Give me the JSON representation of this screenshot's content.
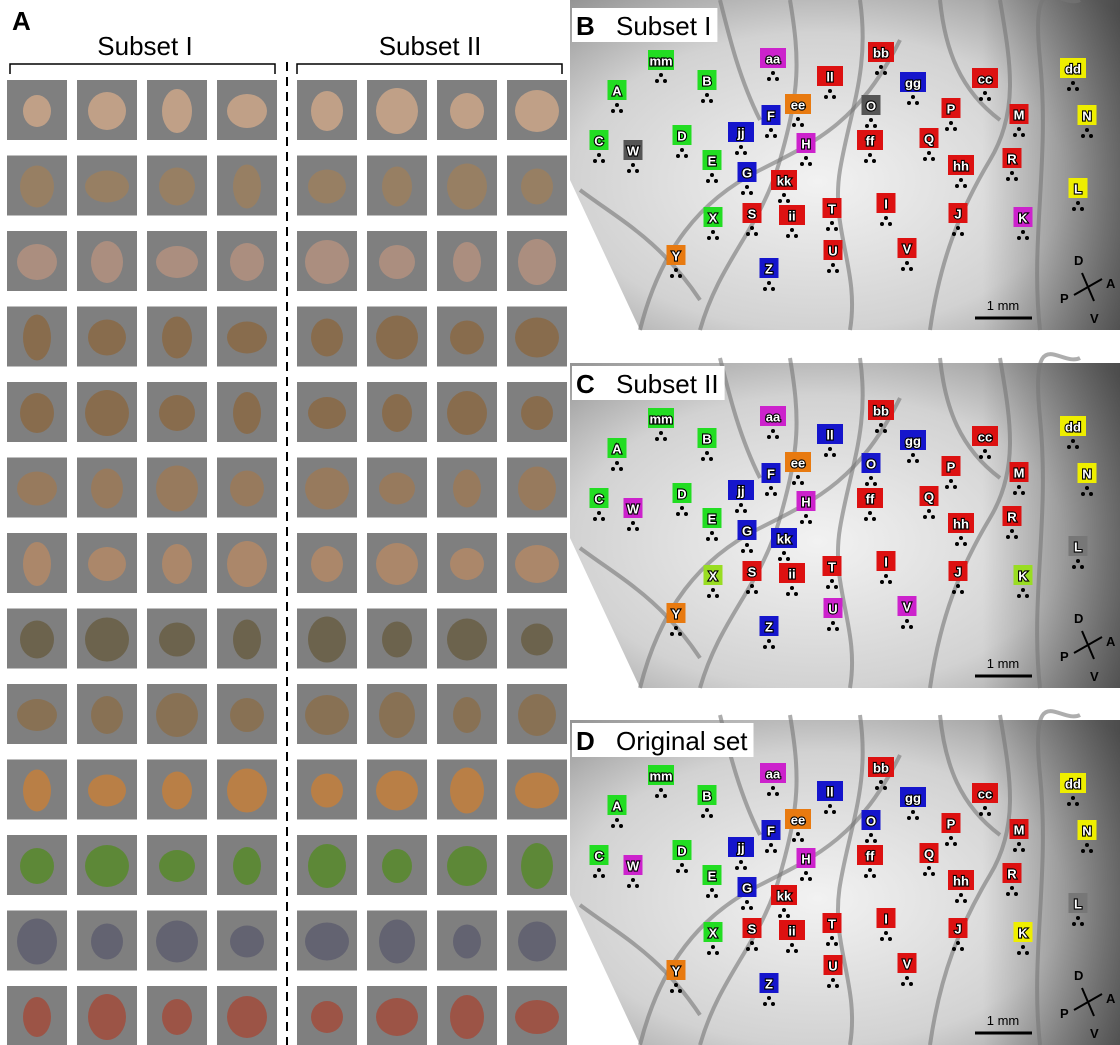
{
  "panel_a": {
    "label": "A",
    "subsets": [
      "Subset I",
      "Subset II"
    ]
  },
  "scale_bar": "1 mm",
  "compass": {
    "dorsal": "D",
    "anterior": "A",
    "posterior": "P",
    "ventral": "V"
  },
  "panels": [
    {
      "label": "B",
      "title": "Subset I",
      "sites": [
        {
          "label": "A",
          "color": "#22dd22"
        },
        {
          "label": "B",
          "color": "#22dd22"
        },
        {
          "label": "C",
          "color": "#22dd22"
        },
        {
          "label": "D",
          "color": "#22dd22"
        },
        {
          "label": "E",
          "color": "#22dd22"
        },
        {
          "label": "F",
          "color": "#1515cc"
        },
        {
          "label": "G",
          "color": "#1515cc"
        },
        {
          "label": "H",
          "color": "#cc22cc"
        },
        {
          "label": "I",
          "color": "#dd1111"
        },
        {
          "label": "J",
          "color": "#dd1111"
        },
        {
          "label": "K",
          "color": "#cc22cc"
        },
        {
          "label": "L",
          "color": "#eeee00"
        },
        {
          "label": "M",
          "color": "#dd1111"
        },
        {
          "label": "N",
          "color": "#eeee00"
        },
        {
          "label": "O",
          "color": "#555555"
        },
        {
          "label": "P",
          "color": "#dd1111"
        },
        {
          "label": "Q",
          "color": "#dd1111"
        },
        {
          "label": "R",
          "color": "#dd1111"
        },
        {
          "label": "S",
          "color": "#dd1111"
        },
        {
          "label": "T",
          "color": "#dd1111"
        },
        {
          "label": "U",
          "color": "#dd1111"
        },
        {
          "label": "V",
          "color": "#dd1111"
        },
        {
          "label": "W",
          "color": "#555555"
        },
        {
          "label": "X",
          "color": "#22dd22"
        },
        {
          "label": "Y",
          "color": "#e87a10"
        },
        {
          "label": "Z",
          "color": "#1515cc"
        },
        {
          "label": "aa",
          "color": "#cc22cc"
        },
        {
          "label": "bb",
          "color": "#dd1111"
        },
        {
          "label": "cc",
          "color": "#dd1111"
        },
        {
          "label": "dd",
          "color": "#eeee00"
        },
        {
          "label": "ee",
          "color": "#e87a10"
        },
        {
          "label": "ff",
          "color": "#dd1111"
        },
        {
          "label": "gg",
          "color": "#1515cc"
        },
        {
          "label": "hh",
          "color": "#dd1111"
        },
        {
          "label": "ii",
          "color": "#dd1111"
        },
        {
          "label": "jj",
          "color": "#1515cc"
        },
        {
          "label": "kk",
          "color": "#dd1111"
        },
        {
          "label": "ll",
          "color": "#dd1111"
        },
        {
          "label": "mm",
          "color": "#22dd22"
        }
      ]
    },
    {
      "label": "C",
      "title": "Subset II",
      "sites": [
        {
          "label": "A",
          "color": "#22dd22"
        },
        {
          "label": "B",
          "color": "#22dd22"
        },
        {
          "label": "C",
          "color": "#22dd22"
        },
        {
          "label": "D",
          "color": "#22dd22"
        },
        {
          "label": "E",
          "color": "#22dd22"
        },
        {
          "label": "F",
          "color": "#1515cc"
        },
        {
          "label": "G",
          "color": "#1515cc"
        },
        {
          "label": "H",
          "color": "#cc22cc"
        },
        {
          "label": "I",
          "color": "#dd1111"
        },
        {
          "label": "J",
          "color": "#dd1111"
        },
        {
          "label": "K",
          "color": "#99dd22"
        },
        {
          "label": "L",
          "color": "#777777"
        },
        {
          "label": "M",
          "color": "#dd1111"
        },
        {
          "label": "N",
          "color": "#eeee00"
        },
        {
          "label": "O",
          "color": "#1515cc"
        },
        {
          "label": "P",
          "color": "#dd1111"
        },
        {
          "label": "Q",
          "color": "#dd1111"
        },
        {
          "label": "R",
          "color": "#dd1111"
        },
        {
          "label": "S",
          "color": "#dd1111"
        },
        {
          "label": "T",
          "color": "#dd1111"
        },
        {
          "label": "U",
          "color": "#cc22cc"
        },
        {
          "label": "V",
          "color": "#cc22cc"
        },
        {
          "label": "W",
          "color": "#cc22cc"
        },
        {
          "label": "X",
          "color": "#99dd22"
        },
        {
          "label": "Y",
          "color": "#e87a10"
        },
        {
          "label": "Z",
          "color": "#1515cc"
        },
        {
          "label": "aa",
          "color": "#cc22cc"
        },
        {
          "label": "bb",
          "color": "#dd1111"
        },
        {
          "label": "cc",
          "color": "#dd1111"
        },
        {
          "label": "dd",
          "color": "#eeee00"
        },
        {
          "label": "ee",
          "color": "#e87a10"
        },
        {
          "label": "ff",
          "color": "#dd1111"
        },
        {
          "label": "gg",
          "color": "#1515cc"
        },
        {
          "label": "hh",
          "color": "#dd1111"
        },
        {
          "label": "ii",
          "color": "#dd1111"
        },
        {
          "label": "jj",
          "color": "#1515cc"
        },
        {
          "label": "kk",
          "color": "#1515cc"
        },
        {
          "label": "ll",
          "color": "#1515cc"
        },
        {
          "label": "mm",
          "color": "#22dd22"
        }
      ]
    },
    {
      "label": "D",
      "title": "Original set",
      "sites": [
        {
          "label": "A",
          "color": "#22dd22"
        },
        {
          "label": "B",
          "color": "#22dd22"
        },
        {
          "label": "C",
          "color": "#22dd22"
        },
        {
          "label": "D",
          "color": "#22dd22"
        },
        {
          "label": "E",
          "color": "#22dd22"
        },
        {
          "label": "F",
          "color": "#1515cc"
        },
        {
          "label": "G",
          "color": "#1515cc"
        },
        {
          "label": "H",
          "color": "#cc22cc"
        },
        {
          "label": "I",
          "color": "#dd1111"
        },
        {
          "label": "J",
          "color": "#dd1111"
        },
        {
          "label": "K",
          "color": "#eeee00"
        },
        {
          "label": "L",
          "color": "#777777"
        },
        {
          "label": "M",
          "color": "#dd1111"
        },
        {
          "label": "N",
          "color": "#eeee00"
        },
        {
          "label": "O",
          "color": "#1515cc"
        },
        {
          "label": "P",
          "color": "#dd1111"
        },
        {
          "label": "Q",
          "color": "#dd1111"
        },
        {
          "label": "R",
          "color": "#dd1111"
        },
        {
          "label": "S",
          "color": "#dd1111"
        },
        {
          "label": "T",
          "color": "#dd1111"
        },
        {
          "label": "U",
          "color": "#dd1111"
        },
        {
          "label": "V",
          "color": "#dd1111"
        },
        {
          "label": "W",
          "color": "#cc22cc"
        },
        {
          "label": "X",
          "color": "#22dd22"
        },
        {
          "label": "Y",
          "color": "#e87a10"
        },
        {
          "label": "Z",
          "color": "#1515cc"
        },
        {
          "label": "aa",
          "color": "#cc22cc"
        },
        {
          "label": "bb",
          "color": "#dd1111"
        },
        {
          "label": "cc",
          "color": "#dd1111"
        },
        {
          "label": "dd",
          "color": "#eeee00"
        },
        {
          "label": "ee",
          "color": "#e87a10"
        },
        {
          "label": "ff",
          "color": "#dd1111"
        },
        {
          "label": "gg",
          "color": "#1515cc"
        },
        {
          "label": "hh",
          "color": "#dd1111"
        },
        {
          "label": "ii",
          "color": "#dd1111"
        },
        {
          "label": "jj",
          "color": "#1515cc"
        },
        {
          "label": "kk",
          "color": "#dd1111"
        },
        {
          "label": "ll",
          "color": "#1515cc"
        },
        {
          "label": "mm",
          "color": "#22dd22"
        }
      ]
    }
  ]
}
